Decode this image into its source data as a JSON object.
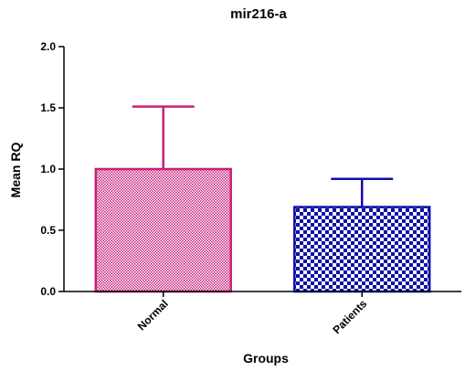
{
  "chart_data": {
    "type": "bar",
    "title": "mir216-a",
    "xlabel": "Groups",
    "ylabel": "Mean RQ",
    "categories": [
      "Normal",
      "Patients"
    ],
    "values": [
      1.0,
      0.69
    ],
    "error_upper": [
      0.51,
      0.23
    ],
    "ylim": [
      0,
      2.0
    ],
    "yticks": [
      "0.0",
      "0.5",
      "1.0",
      "1.5",
      "2.0"
    ],
    "grid": false,
    "legend": "none",
    "colors": [
      "#c8207a",
      "#1010a8"
    ],
    "patterns": [
      "fine-check",
      "coarse-check"
    ]
  }
}
